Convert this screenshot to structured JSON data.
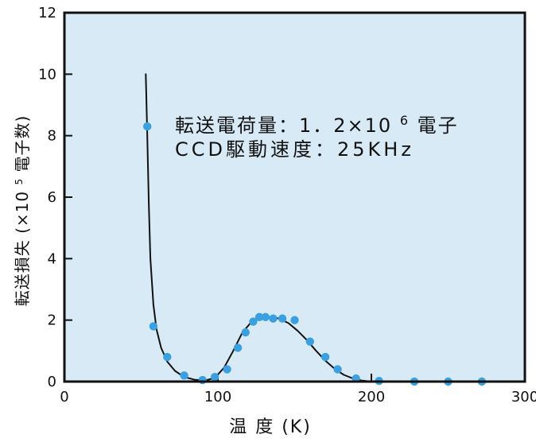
{
  "chart_data": {
    "type": "scatter",
    "xlabel": "温 度 (K)",
    "ylabel": "転送損失 (×10",
    "ylabel_exponent": "5",
    "ylabel_suffix": "電子数)",
    "xlim": [
      0,
      300
    ],
    "ylim": [
      0,
      12
    ],
    "x_ticks": [
      0,
      100,
      200,
      300
    ],
    "y_ticks": [
      0,
      2,
      4,
      6,
      8,
      10,
      12
    ],
    "x_tick_labels": [
      "0",
      "100",
      "200",
      "300"
    ],
    "y_tick_labels": [
      "0",
      "2",
      "4",
      "6",
      "8",
      "10",
      "12"
    ],
    "grid": false,
    "annotations": [
      {
        "text": "転送電荷量：1．2×10",
        "superscript": "6",
        "suffix": " 電子"
      },
      {
        "text": "CCD駆動速度：25KHz"
      }
    ],
    "series": [
      {
        "kind": "points",
        "x": [
          54,
          58,
          67,
          78,
          90,
          98,
          106,
          113,
          118,
          123,
          127,
          131,
          136,
          142,
          150,
          160,
          170,
          178,
          190,
          205,
          228,
          250,
          272
        ],
        "y": [
          8.3,
          1.8,
          0.8,
          0.2,
          0.05,
          0.15,
          0.4,
          1.1,
          1.6,
          1.95,
          2.1,
          2.1,
          2.05,
          2.05,
          2.0,
          1.3,
          0.8,
          0.4,
          0.1,
          0.02,
          0.0,
          0.0,
          0.0
        ]
      },
      {
        "kind": "curve",
        "x": [
          53,
          54,
          55,
          56,
          58,
          60,
          63,
          67,
          72,
          78,
          85,
          92,
          98,
          104,
          110,
          116,
          122,
          128,
          134,
          140,
          146,
          152,
          158,
          164,
          170,
          176,
          182,
          188,
          194,
          200
        ],
        "y": [
          10.0,
          8.0,
          5.8,
          4.0,
          2.5,
          1.7,
          1.1,
          0.65,
          0.35,
          0.15,
          0.06,
          0.04,
          0.12,
          0.45,
          1.0,
          1.6,
          1.95,
          2.05,
          2.1,
          2.05,
          1.9,
          1.65,
          1.35,
          1.0,
          0.68,
          0.42,
          0.22,
          0.1,
          0.03,
          0.0
        ]
      }
    ],
    "colors": {
      "page_background": "#ffffff",
      "plot_background": "#d8eaf6",
      "axis": "#111111",
      "points": "#3aa0df",
      "curve": "#111111"
    }
  }
}
